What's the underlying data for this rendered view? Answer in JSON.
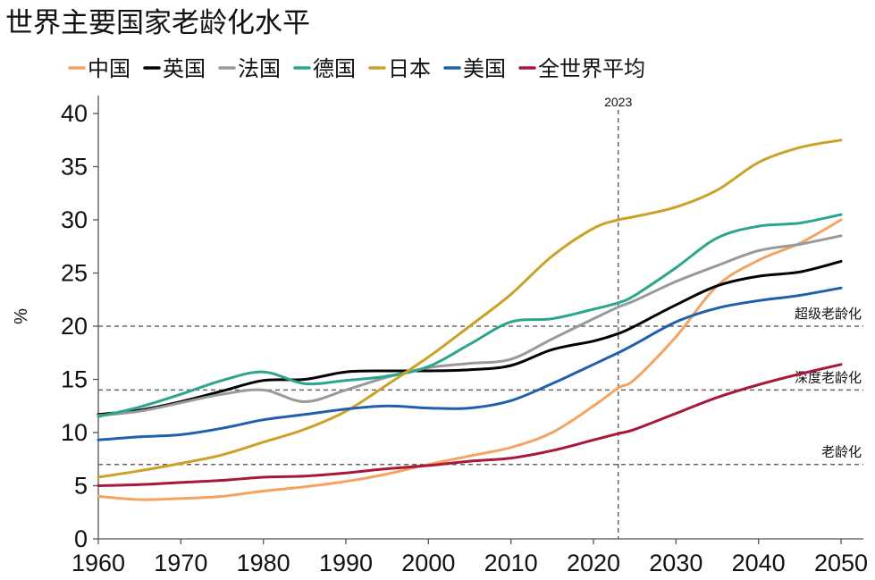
{
  "chart_data": {
    "type": "line",
    "title": "世界主要国家老龄化水平",
    "xlabel": "",
    "ylabel": "%",
    "xlim": [
      1960,
      2050
    ],
    "ylim": [
      0,
      40
    ],
    "xticks": [
      1960,
      1970,
      1980,
      1990,
      2000,
      2010,
      2020,
      2030,
      2040,
      2050
    ],
    "yticks": [
      0,
      5,
      10,
      15,
      20,
      25,
      30,
      35,
      40
    ],
    "grid": false,
    "legend_position": "top",
    "x": [
      1960,
      1965,
      1970,
      1975,
      1980,
      1985,
      1990,
      1995,
      2000,
      2005,
      2010,
      2015,
      2020,
      2023,
      2025,
      2030,
      2035,
      2040,
      2045,
      2050
    ],
    "series": [
      {
        "name": "中国",
        "color": "#F4A460",
        "values": [
          4.0,
          3.7,
          3.8,
          4.0,
          4.5,
          4.9,
          5.4,
          6.1,
          7.0,
          7.8,
          8.6,
          10.0,
          12.5,
          14.2,
          15.0,
          19.0,
          23.8,
          26.2,
          27.8,
          30.0
        ]
      },
      {
        "name": "英国",
        "color": "#000000",
        "values": [
          11.7,
          12.1,
          12.9,
          13.9,
          14.9,
          15.0,
          15.7,
          15.8,
          15.8,
          15.9,
          16.3,
          17.8,
          18.6,
          19.3,
          20.0,
          22.0,
          23.8,
          24.7,
          25.1,
          26.1
        ]
      },
      {
        "name": "法国",
        "color": "#999999",
        "values": [
          11.6,
          12.0,
          12.8,
          13.6,
          14.0,
          12.9,
          14.0,
          15.2,
          16.1,
          16.5,
          16.9,
          18.8,
          20.7,
          21.8,
          22.4,
          24.2,
          25.7,
          27.1,
          27.7,
          28.5
        ]
      },
      {
        "name": "德国",
        "color": "#2BA58C",
        "values": [
          11.5,
          12.4,
          13.6,
          14.9,
          15.7,
          14.6,
          14.9,
          15.3,
          16.2,
          18.3,
          20.4,
          20.7,
          21.6,
          22.2,
          22.9,
          25.5,
          28.3,
          29.4,
          29.7,
          30.5
        ]
      },
      {
        "name": "日本",
        "color": "#C9A227",
        "values": [
          5.8,
          6.4,
          7.1,
          7.9,
          9.1,
          10.3,
          12.0,
          14.5,
          17.1,
          20.0,
          23.0,
          26.6,
          29.2,
          30.0,
          30.3,
          31.2,
          32.8,
          35.4,
          36.8,
          37.5
        ]
      },
      {
        "name": "美国",
        "color": "#1F5FAD",
        "values": [
          9.3,
          9.6,
          9.8,
          10.4,
          11.2,
          11.7,
          12.2,
          12.5,
          12.3,
          12.3,
          13.0,
          14.6,
          16.4,
          17.5,
          18.3,
          20.4,
          21.7,
          22.4,
          22.9,
          23.6
        ]
      },
      {
        "name": "全世界平均",
        "color": "#A8183A",
        "values": [
          5.0,
          5.1,
          5.3,
          5.5,
          5.8,
          5.9,
          6.2,
          6.6,
          6.9,
          7.3,
          7.6,
          8.3,
          9.3,
          9.9,
          10.3,
          11.8,
          13.3,
          14.5,
          15.5,
          16.4
        ]
      }
    ],
    "reference_lines": [
      {
        "orientation": "vertical",
        "x": 2023,
        "label": "2023"
      },
      {
        "orientation": "horizontal",
        "y": 20,
        "label": "超级老龄化"
      },
      {
        "orientation": "horizontal",
        "y": 14,
        "label": "深度老龄化"
      },
      {
        "orientation": "horizontal",
        "y": 7,
        "label": "老龄化"
      }
    ]
  }
}
